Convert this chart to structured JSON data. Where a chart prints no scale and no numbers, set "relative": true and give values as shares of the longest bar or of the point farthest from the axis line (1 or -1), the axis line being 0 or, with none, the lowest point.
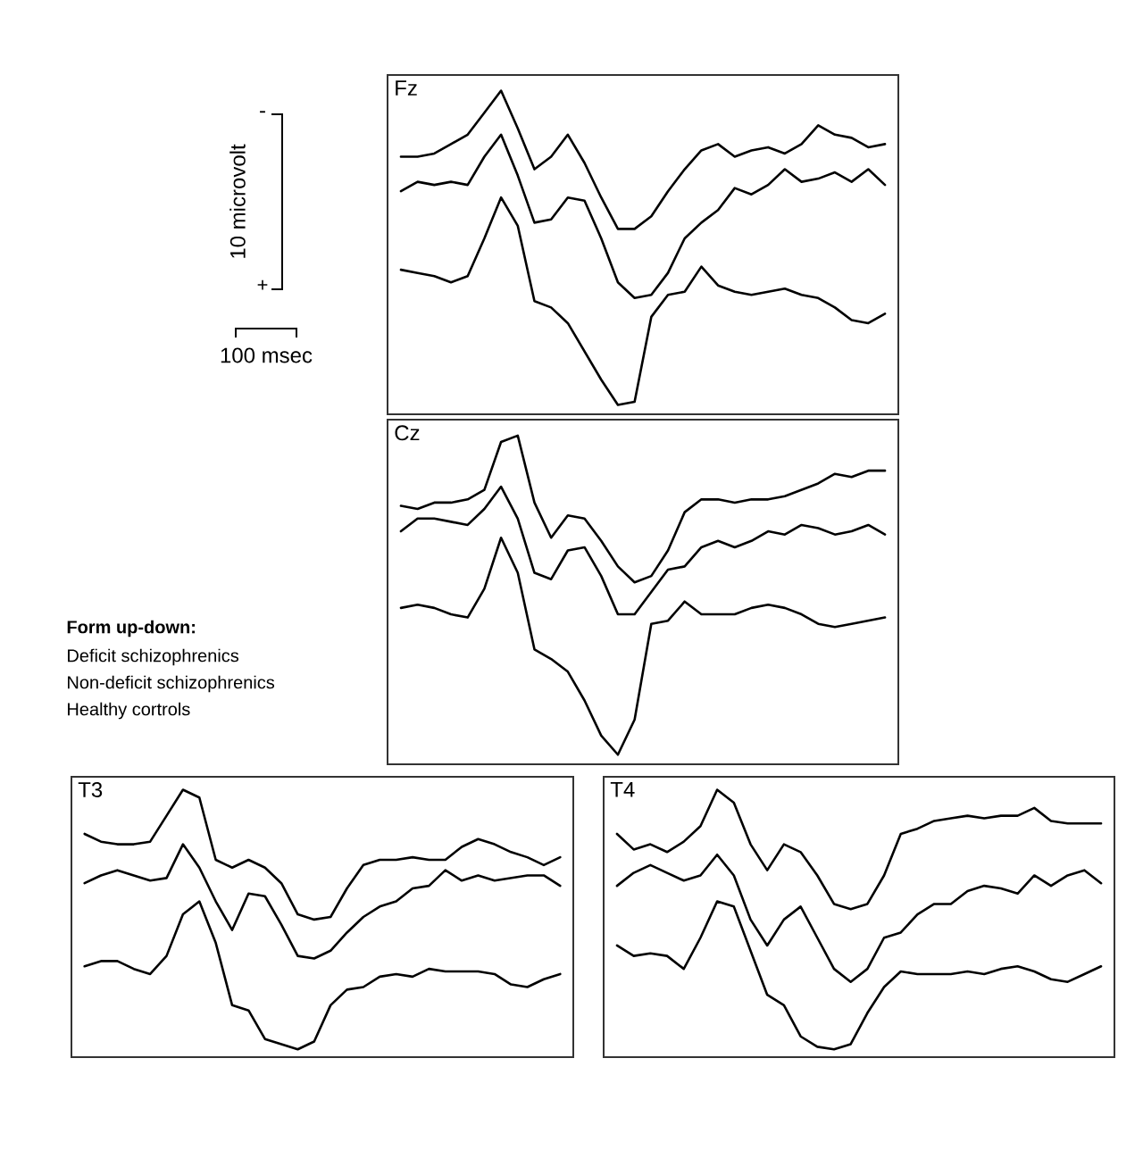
{
  "chart_data": [
    {
      "type": "other",
      "annotations": [
        "10 microvolt",
        "-",
        "+",
        "100 msec",
        "Form up-down:",
        "Deficit schizophrenics",
        "Non-deficit schizophrenics",
        "Healthy cortrols"
      ]
    },
    {
      "type": "line",
      "title": "Fz",
      "relative": true,
      "marker": "none",
      "line_style": "solid",
      "categories": [
        null,
        null,
        null,
        null,
        null,
        null,
        null,
        null,
        null,
        null,
        null,
        null,
        null,
        null,
        null,
        null,
        null,
        null,
        null,
        null,
        null,
        null,
        null,
        null,
        null,
        null,
        null,
        null,
        null,
        null
      ],
      "series": [
        {
          "color": "#000000",
          "values": [
            0.79,
            0.79,
            0.8,
            0.83,
            0.86,
            0.93,
            1.0,
            0.88,
            0.75,
            0.79,
            0.86,
            0.77,
            0.66,
            0.56,
            0.56,
            0.6,
            0.68,
            0.75,
            0.81,
            0.83,
            0.79,
            0.81,
            0.82,
            0.8,
            0.83,
            0.89,
            0.86,
            0.85,
            0.82,
            0.83
          ]
        },
        {
          "color": "#000000",
          "values": [
            0.68,
            0.71,
            0.7,
            0.71,
            0.7,
            0.79,
            0.86,
            0.73,
            0.58,
            0.59,
            0.66,
            0.65,
            0.53,
            0.39,
            0.34,
            0.35,
            0.42,
            0.53,
            0.58,
            0.62,
            0.69,
            0.67,
            0.7,
            0.75,
            0.71,
            0.72,
            0.74,
            0.71,
            0.75,
            0.7
          ]
        },
        {
          "color": "#000000",
          "values": [
            0.43,
            0.42,
            0.41,
            0.39,
            0.41,
            0.53,
            0.66,
            0.57,
            0.33,
            0.31,
            0.26,
            0.17,
            0.08,
            0.0,
            0.01,
            0.28,
            0.35,
            0.36,
            0.44,
            0.38,
            0.36,
            0.35,
            0.36,
            0.37,
            0.35,
            0.34,
            0.31,
            0.27,
            0.26,
            0.29
          ]
        }
      ]
    },
    {
      "type": "line",
      "title": "Cz",
      "relative": true,
      "marker": "none",
      "line_style": "solid",
      "categories": [
        null,
        null,
        null,
        null,
        null,
        null,
        null,
        null,
        null,
        null,
        null,
        null,
        null,
        null,
        null,
        null,
        null,
        null,
        null,
        null,
        null,
        null,
        null,
        null,
        null,
        null,
        null,
        null,
        null,
        null
      ],
      "series": [
        {
          "color": "#000000",
          "values": [
            0.78,
            0.77,
            0.79,
            0.79,
            0.8,
            0.83,
            0.98,
            1.0,
            0.79,
            0.68,
            0.75,
            0.74,
            0.67,
            0.59,
            0.54,
            0.56,
            0.64,
            0.76,
            0.8,
            0.8,
            0.79,
            0.8,
            0.8,
            0.81,
            0.83,
            0.85,
            0.88,
            0.87,
            0.89,
            0.89
          ]
        },
        {
          "color": "#000000",
          "values": [
            0.7,
            0.74,
            0.74,
            0.73,
            0.72,
            0.77,
            0.84,
            0.74,
            0.57,
            0.55,
            0.64,
            0.65,
            0.56,
            0.44,
            0.44,
            0.51,
            0.58,
            0.59,
            0.65,
            0.67,
            0.65,
            0.67,
            0.7,
            0.69,
            0.72,
            0.71,
            0.69,
            0.7,
            0.72,
            0.69
          ]
        },
        {
          "color": "#000000",
          "values": [
            0.46,
            0.47,
            0.46,
            0.44,
            0.43,
            0.52,
            0.68,
            0.57,
            0.33,
            0.3,
            0.26,
            0.17,
            0.06,
            0.0,
            0.11,
            0.41,
            0.42,
            0.48,
            0.44,
            0.44,
            0.44,
            0.46,
            0.47,
            0.46,
            0.44,
            0.41,
            0.4,
            0.41,
            0.42,
            0.43
          ]
        }
      ]
    },
    {
      "type": "line",
      "title": "T3",
      "relative": true,
      "marker": "none",
      "line_style": "solid",
      "categories": [
        null,
        null,
        null,
        null,
        null,
        null,
        null,
        null,
        null,
        null,
        null,
        null,
        null,
        null,
        null,
        null,
        null,
        null,
        null,
        null,
        null,
        null,
        null,
        null,
        null,
        null,
        null,
        null,
        null,
        null
      ],
      "series": [
        {
          "color": "#000000",
          "values": [
            0.83,
            0.8,
            0.79,
            0.79,
            0.8,
            0.9,
            1.0,
            0.97,
            0.73,
            0.7,
            0.73,
            0.7,
            0.64,
            0.52,
            0.5,
            0.51,
            0.62,
            0.71,
            0.73,
            0.73,
            0.74,
            0.73,
            0.73,
            0.78,
            0.81,
            0.79,
            0.76,
            0.74,
            0.71,
            0.74
          ]
        },
        {
          "color": "#000000",
          "values": [
            0.64,
            0.67,
            0.69,
            0.67,
            0.65,
            0.66,
            0.79,
            0.7,
            0.57,
            0.46,
            0.6,
            0.59,
            0.48,
            0.36,
            0.35,
            0.38,
            0.45,
            0.51,
            0.55,
            0.57,
            0.62,
            0.63,
            0.69,
            0.65,
            0.67,
            0.65,
            0.66,
            0.67,
            0.67,
            0.63
          ]
        },
        {
          "color": "#000000",
          "values": [
            0.32,
            0.34,
            0.34,
            0.31,
            0.29,
            0.36,
            0.52,
            0.57,
            0.41,
            0.17,
            0.15,
            0.04,
            0.02,
            0.0,
            0.03,
            0.17,
            0.23,
            0.24,
            0.28,
            0.29,
            0.28,
            0.31,
            0.3,
            0.3,
            0.3,
            0.29,
            0.25,
            0.24,
            0.27,
            0.29
          ]
        }
      ]
    },
    {
      "type": "line",
      "title": "T4",
      "relative": true,
      "marker": "none",
      "line_style": "solid",
      "categories": [
        null,
        null,
        null,
        null,
        null,
        null,
        null,
        null,
        null,
        null,
        null,
        null,
        null,
        null,
        null,
        null,
        null,
        null,
        null,
        null,
        null,
        null,
        null,
        null,
        null,
        null,
        null,
        null,
        null,
        null
      ],
      "series": [
        {
          "color": "#000000",
          "values": [
            0.83,
            0.77,
            0.79,
            0.76,
            0.8,
            0.86,
            1.0,
            0.95,
            0.79,
            0.69,
            0.79,
            0.76,
            0.67,
            0.56,
            0.54,
            0.56,
            0.67,
            0.83,
            0.85,
            0.88,
            0.89,
            0.9,
            0.89,
            0.9,
            0.9,
            0.93,
            0.88,
            0.87,
            0.87,
            0.87
          ]
        },
        {
          "color": "#000000",
          "values": [
            0.63,
            0.68,
            0.71,
            0.68,
            0.65,
            0.67,
            0.75,
            0.67,
            0.5,
            0.4,
            0.5,
            0.55,
            0.43,
            0.31,
            0.26,
            0.31,
            0.43,
            0.45,
            0.52,
            0.56,
            0.56,
            0.61,
            0.63,
            0.62,
            0.6,
            0.67,
            0.63,
            0.67,
            0.69,
            0.64
          ]
        },
        {
          "color": "#000000",
          "values": [
            0.4,
            0.36,
            0.37,
            0.36,
            0.31,
            0.43,
            0.57,
            0.55,
            0.38,
            0.21,
            0.17,
            0.05,
            0.01,
            0.0,
            0.02,
            0.14,
            0.24,
            0.3,
            0.29,
            0.29,
            0.29,
            0.3,
            0.29,
            0.31,
            0.32,
            0.3,
            0.27,
            0.26,
            0.29,
            0.32
          ]
        }
      ]
    }
  ]
}
